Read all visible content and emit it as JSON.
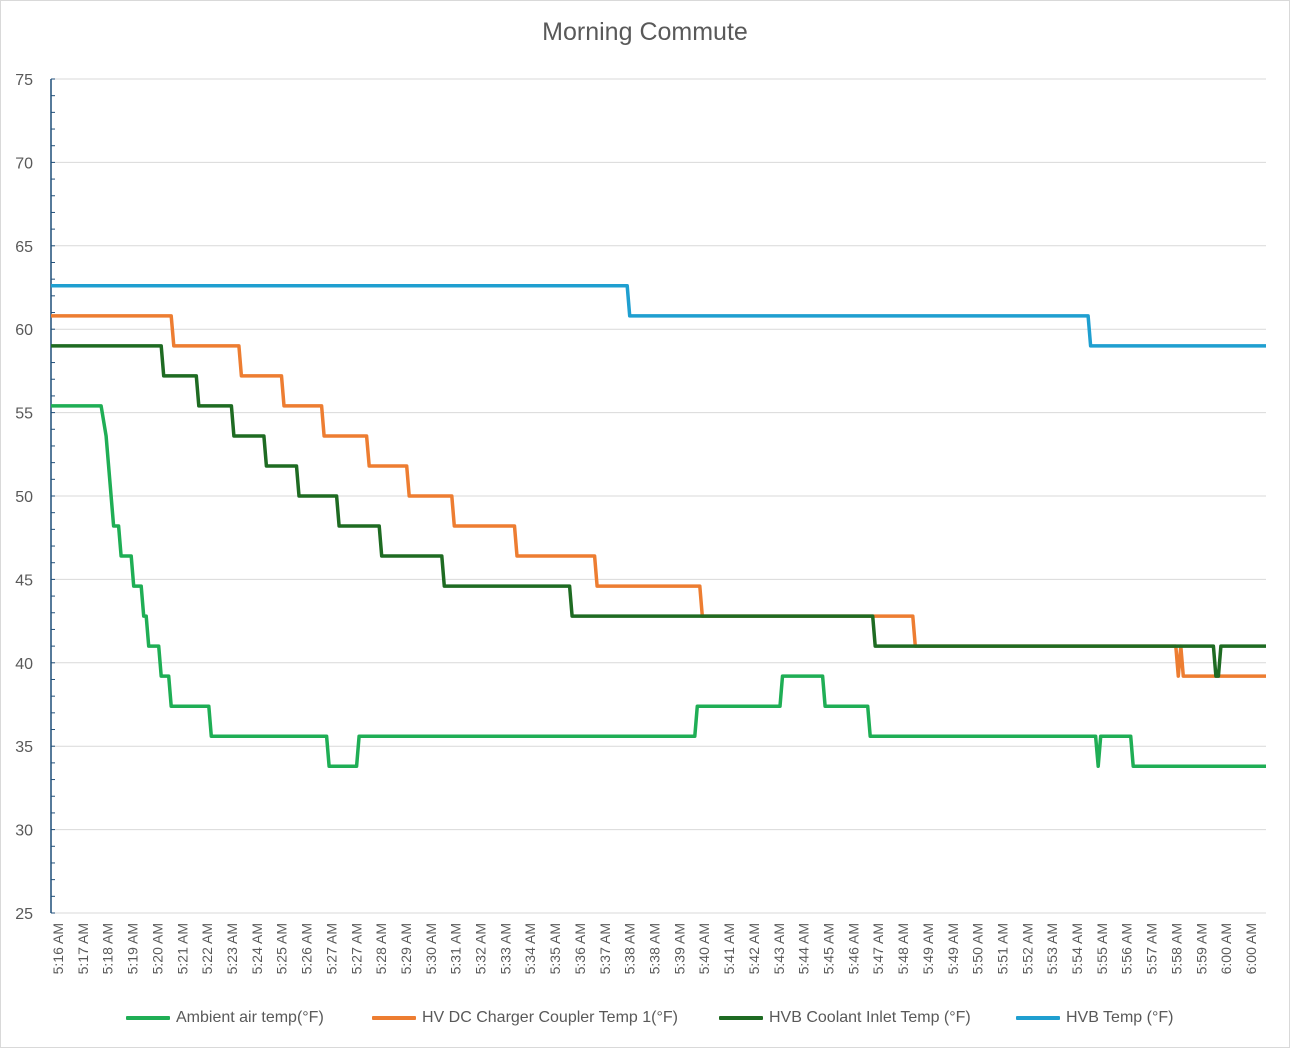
{
  "chart_data": {
    "type": "line",
    "title": "Morning Commute",
    "xlabel": "",
    "ylabel": "",
    "ylim": [
      25,
      75
    ],
    "yticks": [
      25,
      30,
      35,
      40,
      45,
      50,
      55,
      60,
      65,
      70,
      75
    ],
    "grid": true,
    "legend_position": "bottom",
    "categories": [
      "5:16 AM",
      "5:17 AM",
      "5:18 AM",
      "5:19 AM",
      "5:20 AM",
      "5:21 AM",
      "5:22 AM",
      "5:23 AM",
      "5:24 AM",
      "5:25 AM",
      "5:26 AM",
      "5:27 AM",
      "5:27 AM",
      "5:28 AM",
      "5:29 AM",
      "5:30 AM",
      "5:31 AM",
      "5:32 AM",
      "5:33 AM",
      "5:34 AM",
      "5:35 AM",
      "5:36 AM",
      "5:37 AM",
      "5:38 AM",
      "5:38 AM",
      "5:39 AM",
      "5:40 AM",
      "5:41 AM",
      "5:42 AM",
      "5:43 AM",
      "5:44 AM",
      "5:45 AM",
      "5:46 AM",
      "5:47 AM",
      "5:48 AM",
      "5:49 AM",
      "5:49 AM",
      "5:50 AM",
      "5:51 AM",
      "5:52 AM",
      "5:53 AM",
      "5:54 AM",
      "5:55 AM",
      "5:56 AM",
      "5:57 AM",
      "5:58 AM",
      "5:59 AM",
      "6:00 AM",
      "6:00 AM"
    ],
    "x_range": [
      0,
      48.5
    ],
    "series": [
      {
        "name": "Ambient air temp(°F)",
        "color": "#1fae55",
        "points": [
          [
            0,
            55.4
          ],
          [
            2,
            55.4
          ],
          [
            2.2,
            53.6
          ],
          [
            2.3,
            51.8
          ],
          [
            2.4,
            50
          ],
          [
            2.5,
            48.2
          ],
          [
            2.7,
            48.2
          ],
          [
            2.8,
            46.4
          ],
          [
            3.2,
            46.4
          ],
          [
            3.3,
            44.6
          ],
          [
            3.6,
            44.6
          ],
          [
            3.7,
            42.8
          ],
          [
            3.8,
            42.8
          ],
          [
            3.9,
            41
          ],
          [
            4.3,
            41
          ],
          [
            4.4,
            39.2
          ],
          [
            4.7,
            39.2
          ],
          [
            4.8,
            37.4
          ],
          [
            6.3,
            37.4
          ],
          [
            6.4,
            35.6
          ],
          [
            11,
            35.6
          ],
          [
            11.1,
            33.8
          ],
          [
            12.2,
            33.8
          ],
          [
            12.3,
            35.6
          ],
          [
            25.7,
            35.6
          ],
          [
            25.8,
            37.4
          ],
          [
            29.1,
            37.4
          ],
          [
            29.2,
            39.2
          ],
          [
            30.8,
            39.2
          ],
          [
            30.9,
            37.4
          ],
          [
            32.6,
            37.4
          ],
          [
            32.7,
            35.6
          ],
          [
            41.7,
            35.6
          ],
          [
            41.8,
            33.8
          ],
          [
            41.9,
            35.6
          ],
          [
            43.1,
            35.6
          ],
          [
            43.2,
            33.8
          ],
          [
            48.5,
            33.8
          ]
        ]
      },
      {
        "name": "HV DC Charger Coupler Temp 1(°F)",
        "color": "#ed7d31",
        "points": [
          [
            0,
            60.8
          ],
          [
            4.8,
            60.8
          ],
          [
            4.9,
            59
          ],
          [
            7.5,
            59
          ],
          [
            7.6,
            57.2
          ],
          [
            9.2,
            57.2
          ],
          [
            9.3,
            55.4
          ],
          [
            10.8,
            55.4
          ],
          [
            10.9,
            53.6
          ],
          [
            12.6,
            53.6
          ],
          [
            12.7,
            51.8
          ],
          [
            14.2,
            51.8
          ],
          [
            14.3,
            50
          ],
          [
            16,
            50
          ],
          [
            16.1,
            48.2
          ],
          [
            18.5,
            48.2
          ],
          [
            18.6,
            46.4
          ],
          [
            21.7,
            46.4
          ],
          [
            21.8,
            44.6
          ],
          [
            25.9,
            44.6
          ],
          [
            26,
            42.8
          ],
          [
            34.4,
            42.8
          ],
          [
            34.5,
            41
          ],
          [
            44.9,
            41
          ],
          [
            45,
            39.2
          ],
          [
            45.1,
            41
          ],
          [
            45.2,
            39.2
          ],
          [
            48.5,
            39.2
          ]
        ]
      },
      {
        "name": "HVB Coolant Inlet Temp (°F)",
        "color": "#1e6b22",
        "points": [
          [
            0,
            59
          ],
          [
            4.4,
            59
          ],
          [
            4.5,
            57.2
          ],
          [
            5.8,
            57.2
          ],
          [
            5.9,
            55.4
          ],
          [
            7.2,
            55.4
          ],
          [
            7.3,
            53.6
          ],
          [
            8.5,
            53.6
          ],
          [
            8.6,
            51.8
          ],
          [
            9.8,
            51.8
          ],
          [
            9.9,
            50
          ],
          [
            11.4,
            50
          ],
          [
            11.5,
            48.2
          ],
          [
            13.1,
            48.2
          ],
          [
            13.2,
            46.4
          ],
          [
            15.6,
            46.4
          ],
          [
            15.7,
            44.6
          ],
          [
            20.7,
            44.6
          ],
          [
            20.8,
            42.8
          ],
          [
            32.8,
            42.8
          ],
          [
            32.9,
            41
          ],
          [
            46.4,
            41
          ],
          [
            46.5,
            39.2
          ],
          [
            46.6,
            39.2
          ],
          [
            46.7,
            41
          ],
          [
            48.5,
            41
          ]
        ]
      },
      {
        "name": "HVB Temp (°F)",
        "color": "#1f9fd0",
        "points": [
          [
            0,
            62.6
          ],
          [
            23,
            62.6
          ],
          [
            23.1,
            60.8
          ],
          [
            41.4,
            60.8
          ],
          [
            41.5,
            59
          ],
          [
            48.5,
            59
          ]
        ]
      }
    ]
  }
}
